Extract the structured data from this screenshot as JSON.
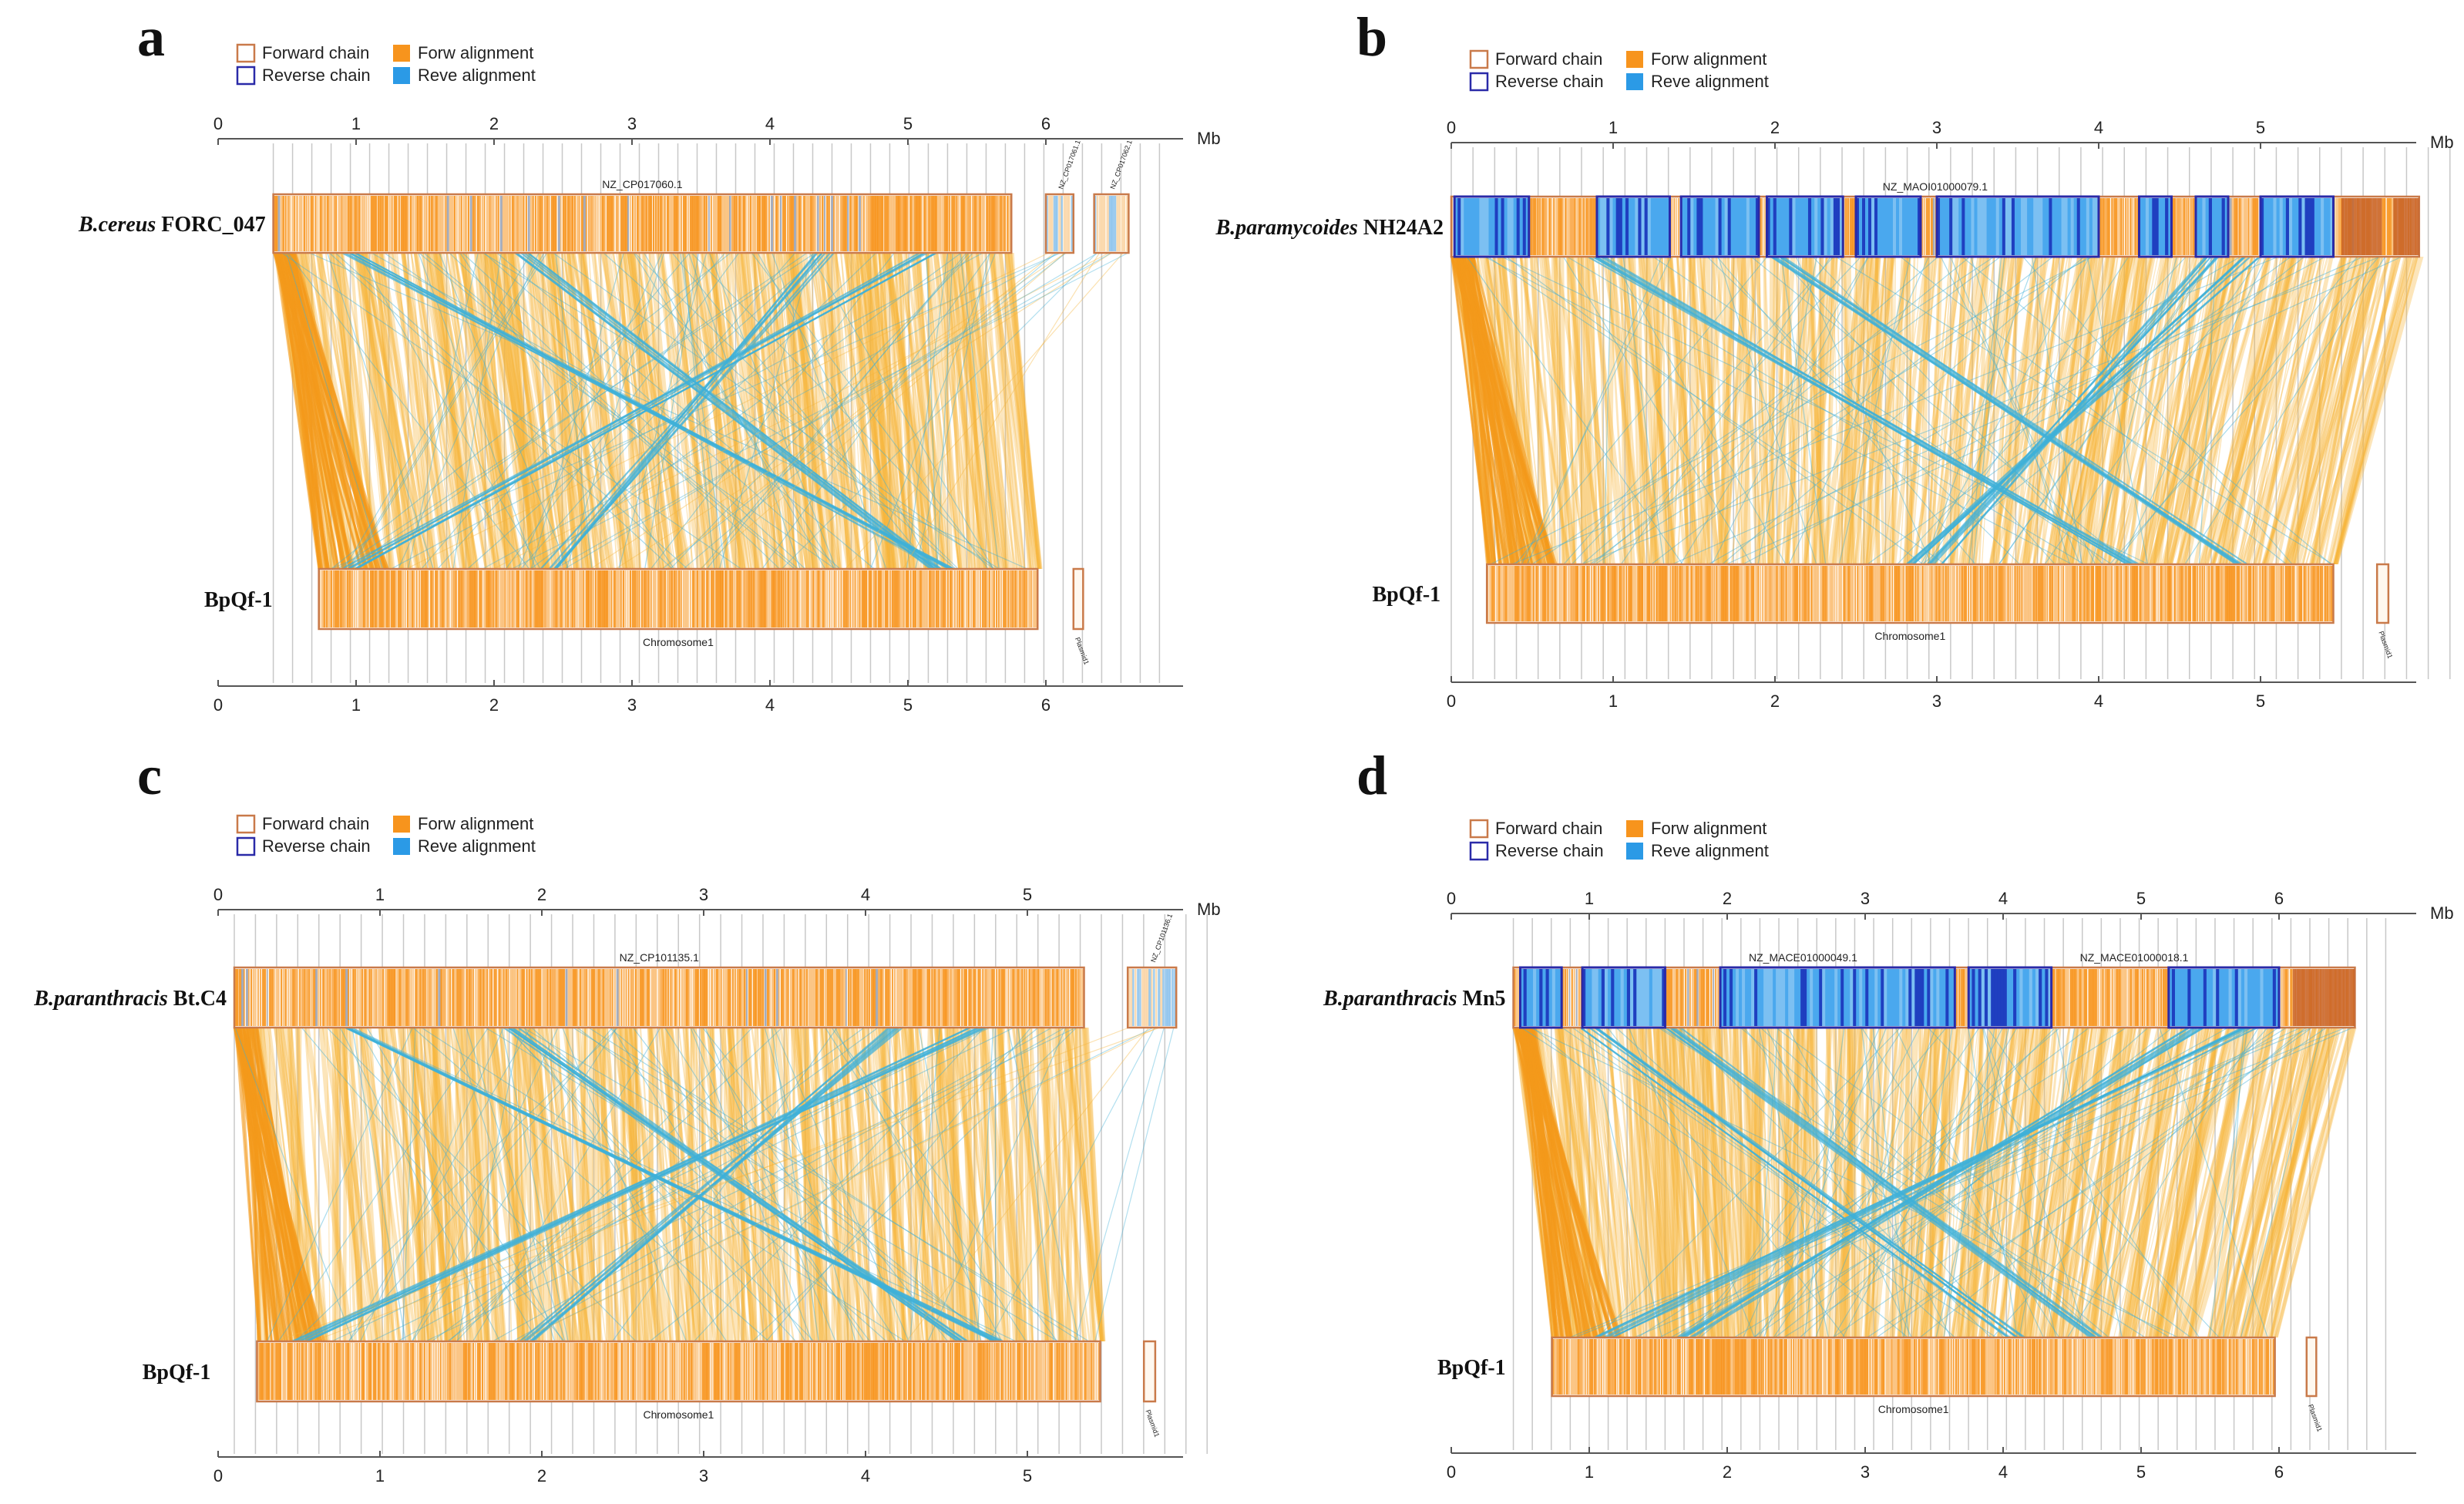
{
  "legend": {
    "forward_chain": "Forward chain",
    "reverse_chain": "Reverse chain",
    "forw_alignment": "Forw alignment",
    "reve_alignment": "Reve alignment"
  },
  "colors": {
    "forward_chain": "#c97a4a",
    "reverse_chain": "#2a2aa8",
    "forw_alignment": "#f7941d",
    "reve_alignment": "#2b9ae6",
    "forw_link": "#f6b43a",
    "reve_link": "#3fb0d8",
    "axis": "#555555",
    "grid": "#c8c8c8"
  },
  "unit": "Mb",
  "panels": [
    {
      "letter": "a",
      "top_species": "B.cereus",
      "top_strain": "FORC_047",
      "bottom_label": "BpQf-1",
      "top_axis_max": 7,
      "top_ticks": [
        0,
        1,
        2,
        3,
        4,
        5,
        6
      ],
      "bottom_axis_max": 7,
      "bottom_ticks": [
        0,
        1,
        2,
        3,
        4,
        5,
        6
      ],
      "top_contigs": [
        {
          "name": "NZ_CP017060.1",
          "start": 0.4,
          "end": 5.75,
          "label": "big"
        },
        {
          "name": "NZ_CP017061.1",
          "start": 6.0,
          "end": 6.2,
          "label": "tiny"
        },
        {
          "name": "NZ_CP017062.1",
          "start": 6.35,
          "end": 6.6,
          "label": "tiny"
        }
      ],
      "bottom_contigs": [
        {
          "name": "Chromosome1",
          "start": 0.73,
          "end": 5.94,
          "label": "below"
        },
        {
          "name": "Plasmid1",
          "start": 6.2,
          "end": 6.27,
          "label": "belowtiny"
        }
      ],
      "reverse_blocks": [],
      "inversions": [
        [
          0.95,
          5.3
        ],
        [
          2.2,
          5.2
        ],
        [
          5.15,
          0.95
        ],
        [
          4.4,
          2.4
        ]
      ]
    },
    {
      "letter": "b",
      "top_species": "B.paramycoides",
      "top_strain": "NH24A2",
      "bottom_label": "BpQf-1",
      "top_axis_max": 6,
      "top_ticks": [
        0,
        1,
        2,
        3,
        4,
        5
      ],
      "bottom_axis_max": 6,
      "bottom_ticks": [
        0,
        1,
        2,
        3,
        4,
        5
      ],
      "top_contigs": [
        {
          "name": "NZ_MAOI01000079.1",
          "start": 0.0,
          "end": 5.98,
          "label": "big"
        }
      ],
      "bottom_contigs": [
        {
          "name": "Chromosome1",
          "start": 0.22,
          "end": 5.45,
          "label": "below"
        },
        {
          "name": "Plasmid1",
          "start": 5.72,
          "end": 5.79,
          "label": "belowtiny"
        }
      ],
      "reverse_blocks": [
        [
          0.02,
          0.48
        ],
        [
          0.9,
          1.35
        ],
        [
          1.42,
          1.9
        ],
        [
          1.95,
          2.42
        ],
        [
          2.5,
          2.9
        ],
        [
          3.0,
          4.0
        ],
        [
          4.25,
          4.45
        ],
        [
          4.6,
          4.8
        ],
        [
          5.0,
          5.45
        ]
      ],
      "inversions": [
        [
          4.95,
          2.8
        ],
        [
          4.7,
          3.0
        ],
        [
          0.9,
          4.2
        ],
        [
          2.0,
          4.9
        ]
      ]
    },
    {
      "letter": "c",
      "top_species": "B.paranthracis",
      "top_strain": "Bt.C4",
      "bottom_label": "BpQf-1",
      "top_axis_max": 6,
      "top_ticks": [
        0,
        1,
        2,
        3,
        4,
        5
      ],
      "bottom_axis_max": 6,
      "bottom_ticks": [
        0,
        1,
        2,
        3,
        4,
        5
      ],
      "top_contigs": [
        {
          "name": "NZ_CP101135.1",
          "start": 0.1,
          "end": 5.35,
          "label": "big"
        },
        {
          "name": "NZ_CP101136.1",
          "start": 5.62,
          "end": 5.92,
          "label": "tiny"
        }
      ],
      "bottom_contigs": [
        {
          "name": "Chromosome1",
          "start": 0.24,
          "end": 5.45,
          "label": "below"
        },
        {
          "name": "Plasmid1",
          "start": 5.72,
          "end": 5.79,
          "label": "belowtiny"
        }
      ],
      "reverse_blocks": [],
      "inversions": [
        [
          0.8,
          4.85
        ],
        [
          1.8,
          4.6
        ],
        [
          4.7,
          0.5
        ],
        [
          4.2,
          1.9
        ]
      ]
    },
    {
      "letter": "d",
      "top_species": "B.paranthracis",
      "top_strain": "Mn5",
      "bottom_label": "BpQf-1",
      "top_axis_max": 7,
      "top_ticks": [
        0,
        1,
        2,
        3,
        4,
        5,
        6
      ],
      "bottom_axis_max": 7,
      "bottom_ticks": [
        0,
        1,
        2,
        3,
        4,
        5,
        6
      ],
      "top_contigs": [
        {
          "name": "NZ_MACE01000049.1",
          "start": 0.45,
          "end": 6.55,
          "label": "big2"
        },
        {
          "name": "NZ_MACE01000018.1",
          "start": 4.3,
          "end": 5.6,
          "label": "none"
        }
      ],
      "bottom_contigs": [
        {
          "name": "Chromosome1",
          "start": 0.73,
          "end": 5.97,
          "label": "below"
        },
        {
          "name": "Plasmid1",
          "start": 6.2,
          "end": 6.27,
          "label": "belowtiny"
        }
      ],
      "reverse_blocks": [
        [
          0.5,
          0.8
        ],
        [
          0.95,
          1.55
        ],
        [
          1.95,
          3.65
        ],
        [
          3.75,
          4.35
        ],
        [
          5.2,
          6.0
        ]
      ],
      "inversions": [
        [
          5.8,
          1.1
        ],
        [
          5.4,
          1.7
        ],
        [
          1.0,
          4.1
        ],
        [
          1.6,
          4.7
        ]
      ]
    }
  ]
}
